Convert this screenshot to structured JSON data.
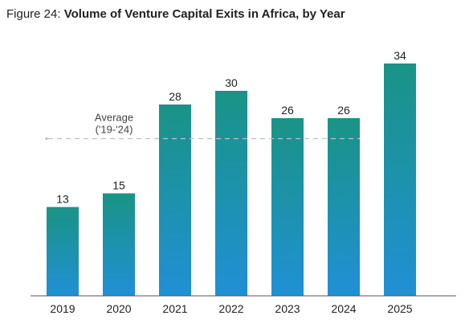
{
  "title": {
    "prefix": "Figure 24:",
    "text": "Volume of Venture Capital Exits in Africa, by Year"
  },
  "chart_data": {
    "type": "bar",
    "categories": [
      "2019",
      "2020",
      "2021",
      "2022",
      "2023",
      "2024",
      "2025"
    ],
    "values": [
      13,
      15,
      28,
      30,
      26,
      26,
      34
    ],
    "ylim": [
      0,
      35
    ],
    "grid": false,
    "colors": {
      "bar_top": "#1A9386",
      "bar_bottom": "#2090D5",
      "average_line": "#bfbfbf"
    },
    "average": {
      "label_line1": "Average",
      "label_line2": "('19-'24)",
      "value": 23
    }
  }
}
